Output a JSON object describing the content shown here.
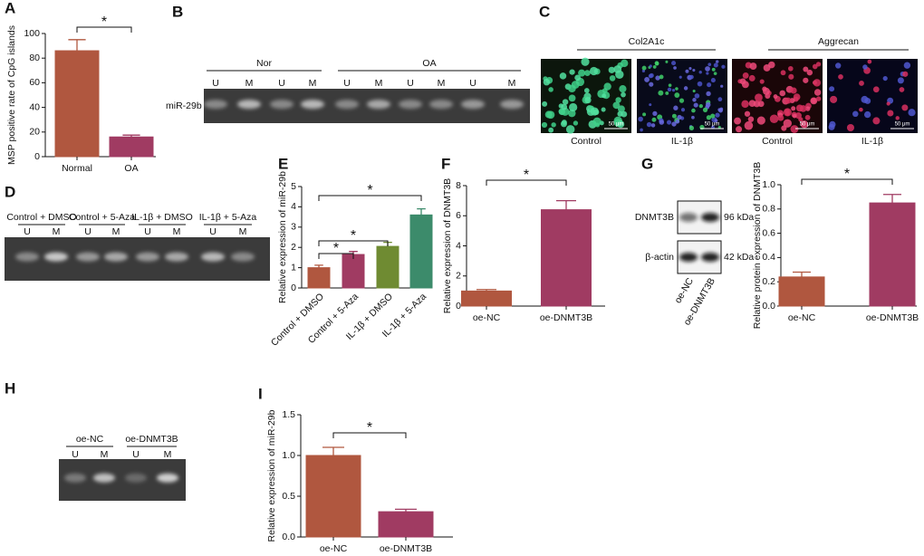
{
  "chart_data": [
    {
      "type": "bar",
      "panel": "A",
      "ylabel": "MSP positive rate of CpG islands",
      "categories": [
        "Normal",
        "OA"
      ],
      "values": [
        86,
        16
      ],
      "errors": [
        9,
        1.5
      ],
      "colors": [
        "#b0573f",
        "#a03b62"
      ],
      "ylim": [
        0,
        100
      ],
      "yticks": [
        0,
        20,
        40,
        60,
        80,
        100
      ],
      "annotations": [
        "*"
      ]
    },
    {
      "type": "bar",
      "panel": "E",
      "ylabel": "Relative expression of miR-29b",
      "categories": [
        "Control + DMSO",
        "Control + 5-Aza",
        "IL-1β + DMSO",
        "IL-1β + 5-Aza"
      ],
      "values": [
        1.0,
        1.65,
        2.05,
        3.6
      ],
      "errors": [
        0.12,
        0.15,
        0.2,
        0.3
      ],
      "colors": [
        "#b0573f",
        "#a03b62",
        "#6f8b32",
        "#3c8b6b"
      ],
      "ylim": [
        0,
        5
      ],
      "yticks": [
        0,
        1,
        2,
        3,
        4,
        5
      ],
      "annotations": [
        "*",
        "*",
        "*"
      ]
    },
    {
      "type": "bar",
      "panel": "F",
      "ylabel": "Relative expression of DNMT3B",
      "categories": [
        "oe-NC",
        "oe-DNMT3B"
      ],
      "values": [
        1.0,
        6.4
      ],
      "errors": [
        0.1,
        0.6
      ],
      "colors": [
        "#b0573f",
        "#a03b62"
      ],
      "ylim": [
        0,
        8
      ],
      "yticks": [
        0,
        2,
        4,
        6,
        8
      ],
      "annotations": [
        "*"
      ]
    },
    {
      "type": "bar",
      "panel": "G",
      "ylabel": "Relative protein expression of DNMT3B",
      "categories": [
        "oe-NC",
        "oe-DNMT3B"
      ],
      "values": [
        0.24,
        0.85
      ],
      "errors": [
        0.04,
        0.07
      ],
      "colors": [
        "#b0573f",
        "#a03b62"
      ],
      "ylim": [
        0,
        1.0
      ],
      "yticks": [
        {
          "value": 0,
          "label": "0.0"
        },
        0.2,
        0.4,
        0.6,
        0.8,
        {
          "value": 1.0,
          "label": "1.0"
        }
      ],
      "annotations": [
        "*"
      ]
    },
    {
      "type": "bar",
      "panel": "I",
      "ylabel": "Relative expression of miR-29b",
      "categories": [
        "oe-NC",
        "oe-DNMT3B"
      ],
      "values": [
        1.0,
        0.31
      ],
      "errors": [
        0.1,
        0.03
      ],
      "colors": [
        "#b0573f",
        "#a03b62"
      ],
      "ylim": [
        0,
        1.5
      ],
      "yticks": [
        {
          "value": 0,
          "label": "0.0"
        },
        0.5,
        {
          "value": 1.0,
          "label": "1.0"
        },
        1.5
      ],
      "annotations": [
        "*"
      ]
    }
  ],
  "panels": [
    {
      "letter": "B",
      "row_label": "miR-29b",
      "groups": [
        "Nor",
        "OA"
      ],
      "lanes": [
        "U",
        "M",
        "U",
        "M",
        "U",
        "M",
        "U",
        "M",
        "U",
        "M"
      ]
    },
    {
      "letter": "C",
      "groups": [
        "Col2A1c",
        "Aggrecan"
      ],
      "images": [
        "Control",
        "IL-1β",
        "Control",
        "IL-1β"
      ],
      "scale_bar": "50 μm"
    },
    {
      "letter": "D",
      "groups": [
        "Control + DMSO",
        "Control + 5-Aza",
        "IL-1β + DMSO",
        "IL-1β + 5-Aza"
      ],
      "lanes": [
        "U",
        "M",
        "U",
        "M",
        "U",
        "M",
        "U",
        "M"
      ]
    },
    {
      "letter": "H",
      "groups": [
        "oe-NC",
        "oe-DNMT3B"
      ],
      "lanes": [
        "U",
        "M",
        "U",
        "M"
      ]
    }
  ],
  "western_blot": {
    "bands": [
      "DNMT3B",
      "β-actin"
    ],
    "sizes": [
      "96 kDa",
      "42 kDa"
    ],
    "lanes": [
      "oe-NC",
      "oe-DNMT3B"
    ]
  }
}
